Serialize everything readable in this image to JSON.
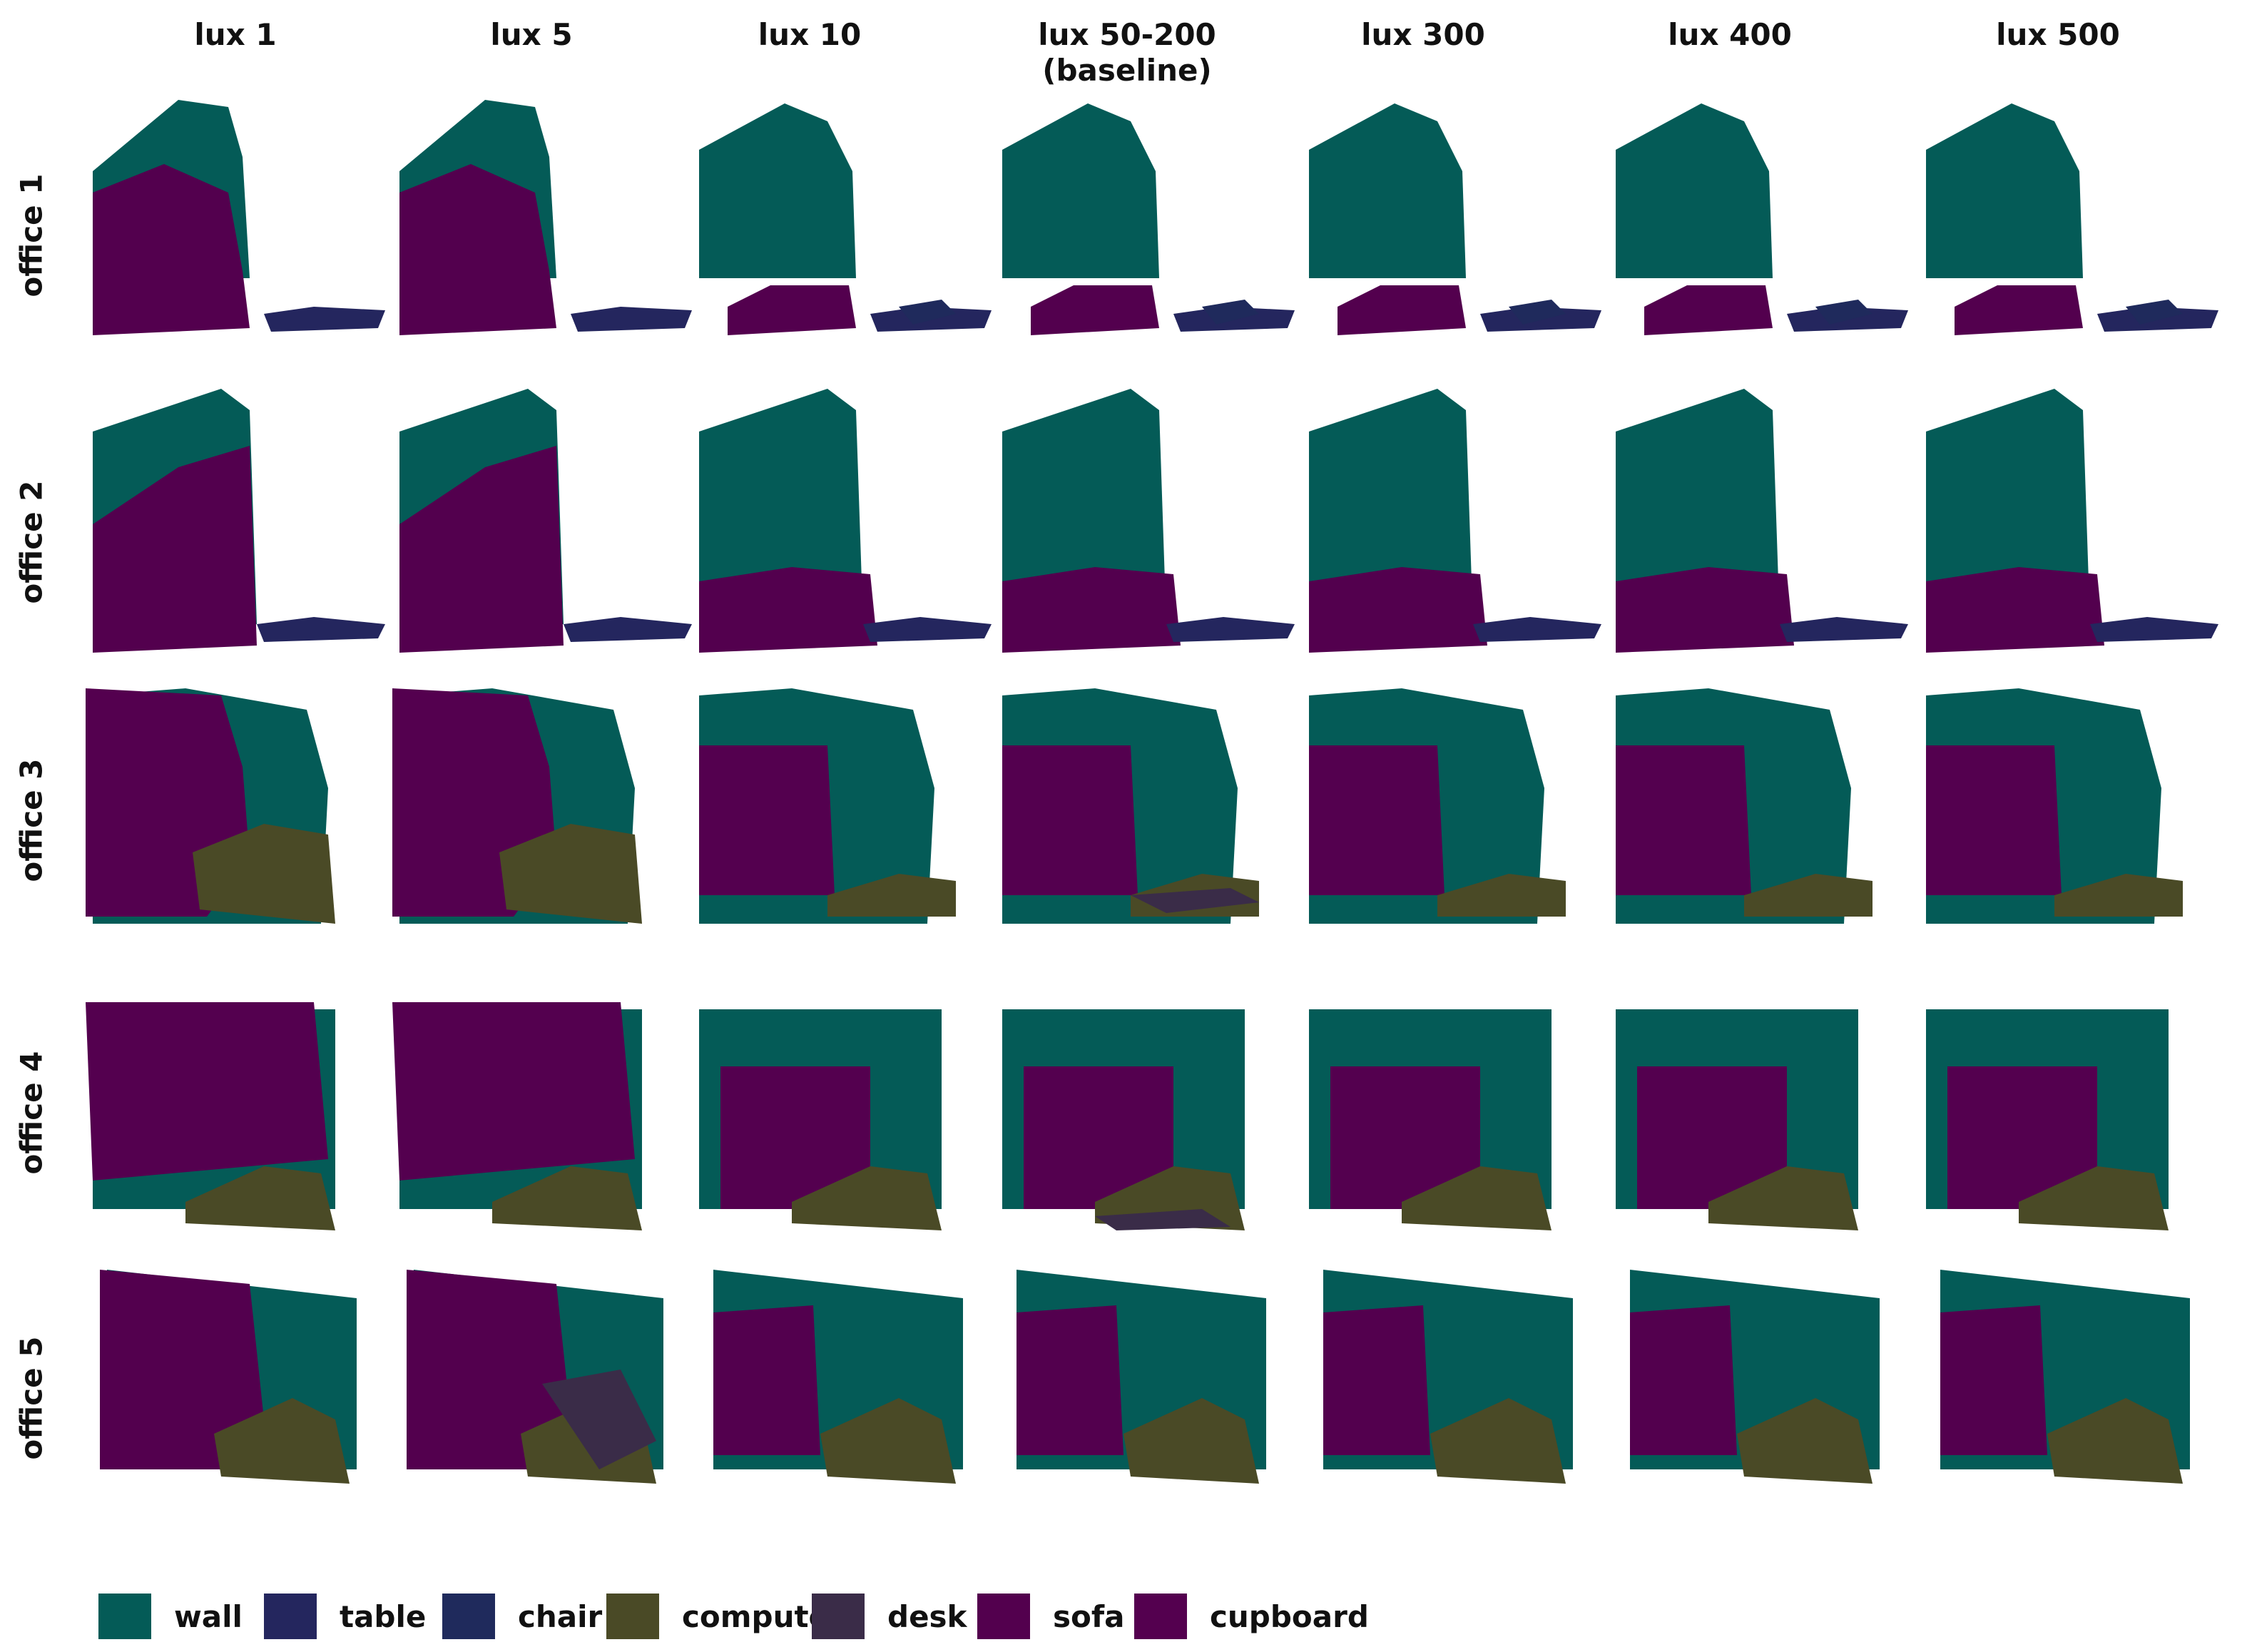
{
  "columns": [
    "lux 1",
    "lux 5",
    "lux 10",
    "lux 50-200\n(baseline)",
    "lux 300",
    "lux 400",
    "lux 500"
  ],
  "rows": [
    "office 1",
    "office 2",
    "office 3",
    "office 4",
    "office 5"
  ],
  "colors": {
    "wall": "#045b57",
    "table": "#24265e",
    "chair": "#1f2a5c",
    "computer": "#4a4a26",
    "desk": "#3a2c48",
    "sofa": "#53004e",
    "cupboard": "#54004f"
  },
  "legend": [
    {
      "key": "wall",
      "label": "wall"
    },
    {
      "key": "table",
      "label": "table"
    },
    {
      "key": "chair",
      "label": "chair"
    },
    {
      "key": "computer",
      "label": "computer"
    },
    {
      "key": "desk",
      "label": "desk"
    },
    {
      "key": "sofa",
      "label": "sofa"
    },
    {
      "key": "cupboard",
      "label": "cupboard"
    }
  ]
}
